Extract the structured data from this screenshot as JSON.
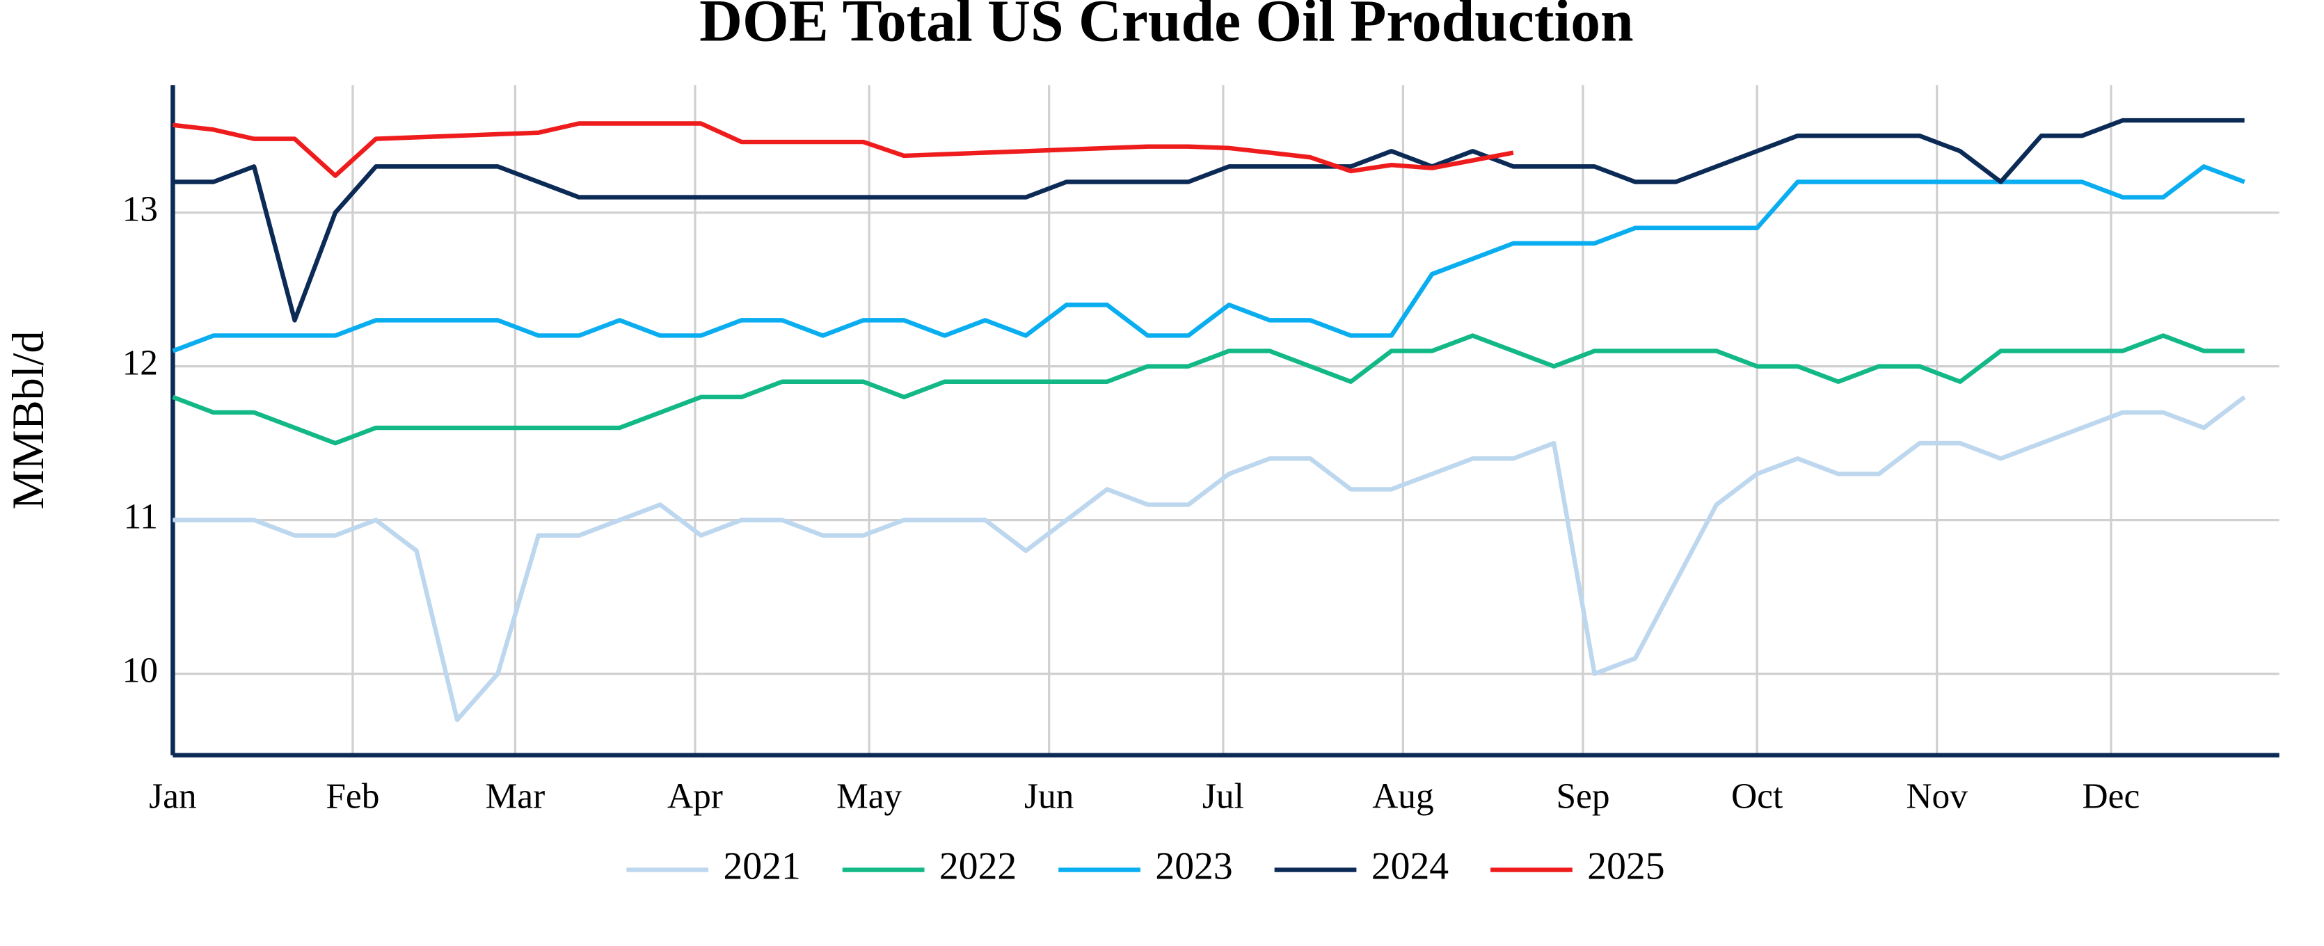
{
  "chart_data": {
    "type": "line",
    "title": "DOE Total US Crude Oil Production",
    "y_label": "MMBbl/d",
    "x": [
      1,
      8,
      15,
      22,
      29,
      36,
      43,
      50,
      57,
      64,
      71,
      78,
      85,
      92,
      99,
      106,
      113,
      120,
      127,
      134,
      141,
      148,
      155,
      162,
      169,
      176,
      183,
      190,
      197,
      204,
      211,
      218,
      225,
      232,
      239,
      246,
      253,
      260,
      267,
      274,
      281,
      288,
      295,
      302,
      309,
      316,
      323,
      330,
      337,
      344,
      351,
      358
    ],
    "xlim": [
      1,
      364
    ],
    "xticks": [
      {
        "value": 1,
        "label": "Jan"
      },
      {
        "value": 32,
        "label": "Feb"
      },
      {
        "value": 60,
        "label": "Mar"
      },
      {
        "value": 91,
        "label": "Apr"
      },
      {
        "value": 121,
        "label": "May"
      },
      {
        "value": 152,
        "label": "Jun"
      },
      {
        "value": 182,
        "label": "Jul"
      },
      {
        "value": 213,
        "label": "Aug"
      },
      {
        "value": 244,
        "label": "Sep"
      },
      {
        "value": 274,
        "label": "Oct"
      },
      {
        "value": 305,
        "label": "Nov"
      },
      {
        "value": 335,
        "label": "Dec"
      }
    ],
    "ylim": [
      9.47,
      13.83
    ],
    "yticks": [
      10,
      11,
      12,
      13
    ],
    "grid": true,
    "legend": "bottom",
    "series": [
      {
        "name": "2021",
        "color": "#bdd7ee",
        "values": [
          11,
          11,
          11,
          10.9,
          10.9,
          11.0,
          10.8,
          9.7,
          10.0,
          10.9,
          10.9,
          11.0,
          11.1,
          10.9,
          11.0,
          11.0,
          10.9,
          10.9,
          11.0,
          11.0,
          11.0,
          10.8,
          11.0,
          11.2,
          11.1,
          11.1,
          11.3,
          11.4,
          11.4,
          11.2,
          11.2,
          11.3,
          11.4,
          11.4,
          11.5,
          10.0,
          10.1,
          10.6,
          11.1,
          11.3,
          11.4,
          11.3,
          11.3,
          11.5,
          11.5,
          11.4,
          11.5,
          11.6,
          11.7,
          11.7,
          11.6,
          11.8
        ]
      },
      {
        "name": "2022",
        "color": "#12b886",
        "values": [
          11.8,
          11.7,
          11.7,
          11.6,
          11.5,
          11.6,
          11.6,
          11.6,
          11.6,
          11.6,
          11.6,
          11.6,
          11.7,
          11.8,
          11.8,
          11.9,
          11.9,
          11.9,
          11.8,
          11.9,
          11.9,
          11.9,
          11.9,
          11.9,
          12.0,
          12.0,
          12.1,
          12.1,
          12.0,
          11.9,
          12.1,
          12.1,
          12.2,
          12.1,
          12.0,
          12.1,
          12.1,
          12.1,
          12.1,
          12.0,
          12.0,
          11.9,
          12.0,
          12.0,
          11.9,
          12.1,
          12.1,
          12.1,
          12.1,
          12.2,
          12.1,
          12.1
        ]
      },
      {
        "name": "2023",
        "color": "#0aaef0",
        "values": [
          12.1,
          12.2,
          12.2,
          12.2,
          12.2,
          12.3,
          12.3,
          12.3,
          12.3,
          12.2,
          12.2,
          12.3,
          12.2,
          12.2,
          12.3,
          12.3,
          12.2,
          12.3,
          12.3,
          12.2,
          12.3,
          12.2,
          12.4,
          12.4,
          12.2,
          12.2,
          12.4,
          12.3,
          12.3,
          12.2,
          12.2,
          12.6,
          12.7,
          12.8,
          12.8,
          12.8,
          12.9,
          12.9,
          12.9,
          12.9,
          13.2,
          13.2,
          13.2,
          13.2,
          13.2,
          13.2,
          13.2,
          13.2,
          13.1,
          13.1,
          13.3,
          13.2
        ]
      },
      {
        "name": "2024",
        "color": "#0b2a55",
        "values": [
          13.2,
          13.2,
          13.3,
          12.3,
          13.0,
          13.3,
          13.3,
          13.3,
          13.3,
          13.2,
          13.1,
          13.1,
          13.1,
          13.1,
          13.1,
          13.1,
          13.1,
          13.1,
          13.1,
          13.1,
          13.1,
          13.1,
          13.2,
          13.2,
          13.2,
          13.2,
          13.3,
          13.3,
          13.3,
          13.3,
          13.4,
          13.3,
          13.4,
          13.3,
          13.3,
          13.3,
          13.2,
          13.2,
          13.3,
          13.4,
          13.5,
          13.5,
          13.5,
          13.5,
          13.4,
          13.2,
          13.5,
          13.5,
          13.6,
          13.6,
          13.6,
          13.6
        ]
      },
      {
        "name": "2025",
        "color": "#ee1c1c",
        "values": [
          13.57,
          13.54,
          13.48,
          13.48,
          13.24,
          13.48,
          13.49,
          13.5,
          13.51,
          13.52,
          13.58,
          13.58,
          13.58,
          13.58,
          13.46,
          13.46,
          13.46,
          13.46,
          13.37,
          13.38,
          13.39,
          13.4,
          13.41,
          13.42,
          13.43,
          13.43,
          13.42,
          13.39,
          13.36,
          13.27,
          13.31,
          13.29,
          13.34,
          13.39,
          null,
          null,
          null,
          null,
          null,
          null,
          null,
          null,
          null,
          null,
          null,
          null,
          null,
          null,
          null,
          null,
          null,
          null
        ]
      }
    ]
  }
}
